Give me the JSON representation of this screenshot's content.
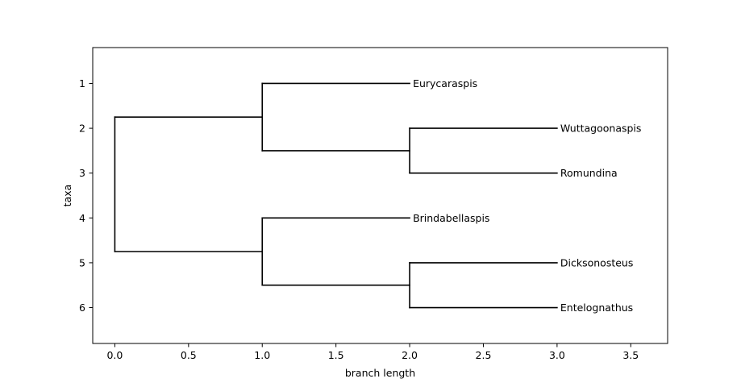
{
  "chart_data": {
    "type": "dendrogram",
    "xlabel": "branch length",
    "ylabel": "taxa",
    "xlim": [
      -0.15,
      3.75
    ],
    "ylim": [
      6.8,
      0.2
    ],
    "xticks": [
      0.0,
      0.5,
      1.0,
      1.5,
      2.0,
      2.5,
      3.0,
      3.5
    ],
    "xtick_labels": [
      "0.0",
      "0.5",
      "1.0",
      "1.5",
      "2.0",
      "2.5",
      "3.0",
      "3.5"
    ],
    "yticks": [
      1,
      2,
      3,
      4,
      5,
      6
    ],
    "ytick_labels": [
      "1",
      "2",
      "3",
      "4",
      "5",
      "6"
    ],
    "leaves": [
      {
        "name": "Eurycaraspis",
        "y": 1,
        "x": 2.0
      },
      {
        "name": "Wuttagoonaspis",
        "y": 2,
        "x": 3.0
      },
      {
        "name": "Romundina",
        "y": 3,
        "x": 3.0
      },
      {
        "name": "Brindabellaspis",
        "y": 4,
        "x": 2.0
      },
      {
        "name": "Dicksonosteus",
        "y": 5,
        "x": 3.0
      },
      {
        "name": "Entelognathus",
        "y": 6,
        "x": 3.0
      }
    ],
    "branches": [
      {
        "x1": 0.0,
        "y1": 1.75,
        "x2": 1.0,
        "y2": 1.75
      },
      {
        "x1": 0.0,
        "y1": 4.75,
        "x2": 1.0,
        "y2": 4.75
      },
      {
        "x1": 0.0,
        "y1": 1.75,
        "x2": 0.0,
        "y2": 4.75
      },
      {
        "x1": 1.0,
        "y1": 1.0,
        "x2": 1.0,
        "y2": 2.5
      },
      {
        "x1": 1.0,
        "y1": 1.0,
        "x2": 2.0,
        "y2": 1.0
      },
      {
        "x1": 1.0,
        "y1": 2.5,
        "x2": 2.0,
        "y2": 2.5
      },
      {
        "x1": 2.0,
        "y1": 2.0,
        "x2": 2.0,
        "y2": 3.0
      },
      {
        "x1": 2.0,
        "y1": 2.0,
        "x2": 3.0,
        "y2": 2.0
      },
      {
        "x1": 2.0,
        "y1": 3.0,
        "x2": 3.0,
        "y2": 3.0
      },
      {
        "x1": 1.0,
        "y1": 4.0,
        "x2": 1.0,
        "y2": 5.5
      },
      {
        "x1": 1.0,
        "y1": 4.0,
        "x2": 2.0,
        "y2": 4.0
      },
      {
        "x1": 1.0,
        "y1": 5.5,
        "x2": 2.0,
        "y2": 5.5
      },
      {
        "x1": 2.0,
        "y1": 5.0,
        "x2": 2.0,
        "y2": 6.0
      },
      {
        "x1": 2.0,
        "y1": 5.0,
        "x2": 3.0,
        "y2": 5.0
      },
      {
        "x1": 2.0,
        "y1": 6.0,
        "x2": 3.0,
        "y2": 6.0
      }
    ],
    "line_color": "#000000",
    "grid": false
  }
}
